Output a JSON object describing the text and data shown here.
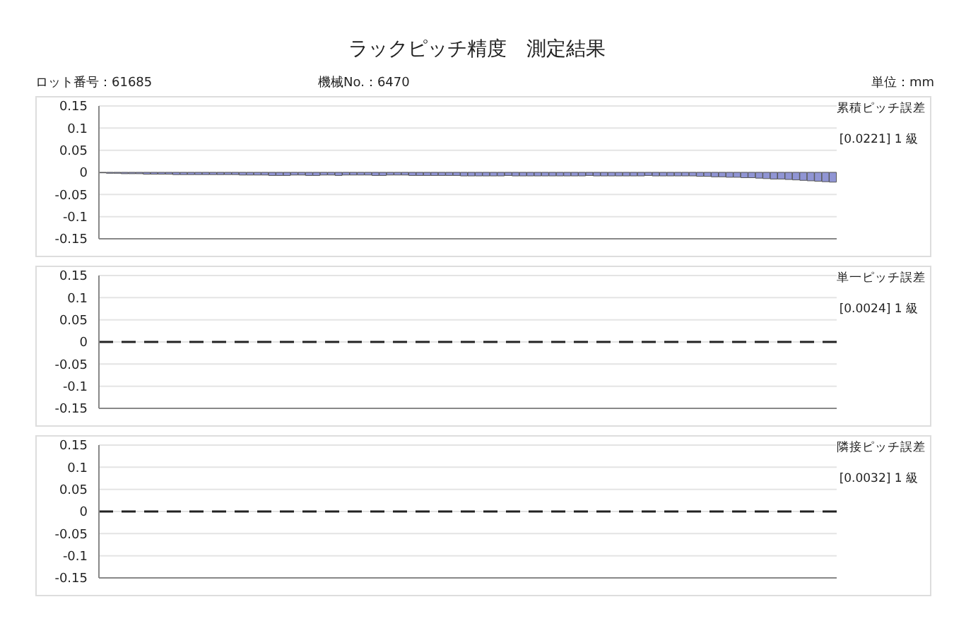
{
  "chart_data": [
    {
      "type": "bar",
      "title": "ラックピッチ精度　測定結果",
      "annotations": [
        "ロット番号：61685",
        "機械No.：6470",
        "単位：mm",
        "累積ピッチ誤差",
        "[0.0221] 1 級"
      ],
      "color": "#9095d4",
      "ylim": [
        -0.15,
        0.15
      ],
      "yticks": [
        -0.15,
        -0.1,
        -0.05,
        0,
        0.05,
        0.1,
        0.15
      ],
      "grid": "y",
      "tick_labels": "y",
      "categories": [
        null,
        null,
        null,
        null,
        null,
        null,
        null,
        null,
        null,
        null,
        null,
        null,
        null,
        null,
        null,
        null,
        null,
        null,
        null,
        null,
        null,
        null,
        null,
        null,
        null,
        null,
        null,
        null,
        null,
        null,
        null,
        null,
        null,
        null,
        null,
        null,
        null,
        null,
        null,
        null,
        null,
        null,
        null,
        null,
        null,
        null,
        null,
        null,
        null,
        null,
        null,
        null,
        null,
        null,
        null,
        null,
        null,
        null,
        null,
        null,
        null,
        null,
        null,
        null,
        null,
        null,
        null,
        null,
        null,
        null,
        null,
        null,
        null,
        null,
        null,
        null,
        null,
        null,
        null,
        null,
        null,
        null,
        null,
        null,
        null,
        null,
        null,
        null,
        null,
        null,
        null,
        null,
        null,
        null,
        null,
        null,
        null,
        null,
        null,
        null
      ],
      "values": [
        -0.001,
        -0.002,
        -0.002,
        -0.003,
        -0.003,
        -0.003,
        -0.004,
        -0.004,
        -0.004,
        -0.004,
        -0.005,
        -0.005,
        -0.005,
        -0.005,
        -0.005,
        -0.005,
        -0.005,
        -0.005,
        -0.005,
        -0.006,
        -0.006,
        -0.006,
        -0.006,
        -0.007,
        -0.007,
        -0.007,
        -0.006,
        -0.006,
        -0.007,
        -0.007,
        -0.006,
        -0.006,
        -0.007,
        -0.006,
        -0.006,
        -0.006,
        -0.006,
        -0.007,
        -0.007,
        -0.006,
        -0.006,
        -0.006,
        -0.007,
        -0.007,
        -0.007,
        -0.007,
        -0.007,
        -0.007,
        -0.007,
        -0.008,
        -0.008,
        -0.008,
        -0.008,
        -0.008,
        -0.008,
        -0.007,
        -0.008,
        -0.008,
        -0.008,
        -0.008,
        -0.008,
        -0.008,
        -0.008,
        -0.008,
        -0.008,
        -0.008,
        -0.007,
        -0.008,
        -0.008,
        -0.008,
        -0.008,
        -0.008,
        -0.008,
        -0.008,
        -0.007,
        -0.008,
        -0.008,
        -0.008,
        -0.008,
        -0.008,
        -0.008,
        -0.009,
        -0.009,
        -0.01,
        -0.01,
        -0.011,
        -0.011,
        -0.012,
        -0.012,
        -0.013,
        -0.014,
        -0.015,
        -0.015,
        -0.016,
        -0.017,
        -0.018,
        -0.019,
        -0.02,
        -0.021,
        -0.022
      ]
    },
    {
      "type": "line",
      "annotations": [
        "単一ピッチ誤差",
        "[0.0024] 1 級"
      ],
      "color": "#222222",
      "line_style": "dashed",
      "ylim": [
        -0.15,
        0.15
      ],
      "yticks": [
        -0.15,
        -0.1,
        -0.05,
        0,
        0.05,
        0.1,
        0.15
      ],
      "grid": "y",
      "tick_labels": "y",
      "categories": [
        null,
        null,
        null,
        null,
        null,
        null,
        null,
        null,
        null,
        null,
        null,
        null,
        null,
        null,
        null,
        null,
        null,
        null,
        null,
        null,
        null,
        null,
        null,
        null,
        null,
        null,
        null,
        null,
        null,
        null,
        null,
        null,
        null,
        null,
        null,
        null,
        null,
        null,
        null,
        null,
        null,
        null,
        null,
        null,
        null,
        null,
        null,
        null,
        null,
        null
      ],
      "values": [
        0,
        0,
        0,
        0,
        0,
        0,
        0,
        0,
        0,
        0,
        0,
        0,
        0,
        0,
        0,
        0,
        0,
        0,
        0,
        0,
        0,
        0,
        0,
        0,
        0,
        0,
        0,
        0,
        0,
        0,
        0,
        0,
        0,
        0,
        0,
        0,
        0,
        0,
        0,
        0,
        0,
        0,
        0,
        0,
        0,
        0,
        0,
        0,
        0,
        0
      ]
    },
    {
      "type": "line",
      "annotations": [
        "隣接ピッチ誤差",
        "[0.0032] 1 級"
      ],
      "color": "#222222",
      "line_style": "dashed",
      "ylim": [
        -0.15,
        0.15
      ],
      "yticks": [
        -0.15,
        -0.1,
        -0.05,
        0,
        0.05,
        0.1,
        0.15
      ],
      "grid": "y",
      "tick_labels": "y",
      "categories": [
        null,
        null,
        null,
        null,
        null,
        null,
        null,
        null,
        null,
        null,
        null,
        null,
        null,
        null,
        null,
        null,
        null,
        null,
        null,
        null,
        null,
        null,
        null,
        null,
        null,
        null,
        null,
        null,
        null,
        null,
        null,
        null,
        null,
        null,
        null,
        null,
        null,
        null,
        null,
        null,
        null,
        null,
        null,
        null,
        null,
        null,
        null,
        null,
        null,
        null
      ],
      "values": [
        0,
        0,
        0,
        0,
        0,
        0,
        0,
        0,
        0,
        0,
        0,
        0,
        0,
        0,
        0,
        0,
        0,
        0,
        0,
        0,
        0,
        0,
        0,
        0,
        0,
        0,
        0,
        0,
        0,
        0,
        0,
        0,
        0,
        0,
        0,
        0,
        0,
        0,
        0,
        0,
        0,
        0,
        0,
        0,
        0,
        0,
        0,
        0,
        0,
        0
      ]
    }
  ]
}
